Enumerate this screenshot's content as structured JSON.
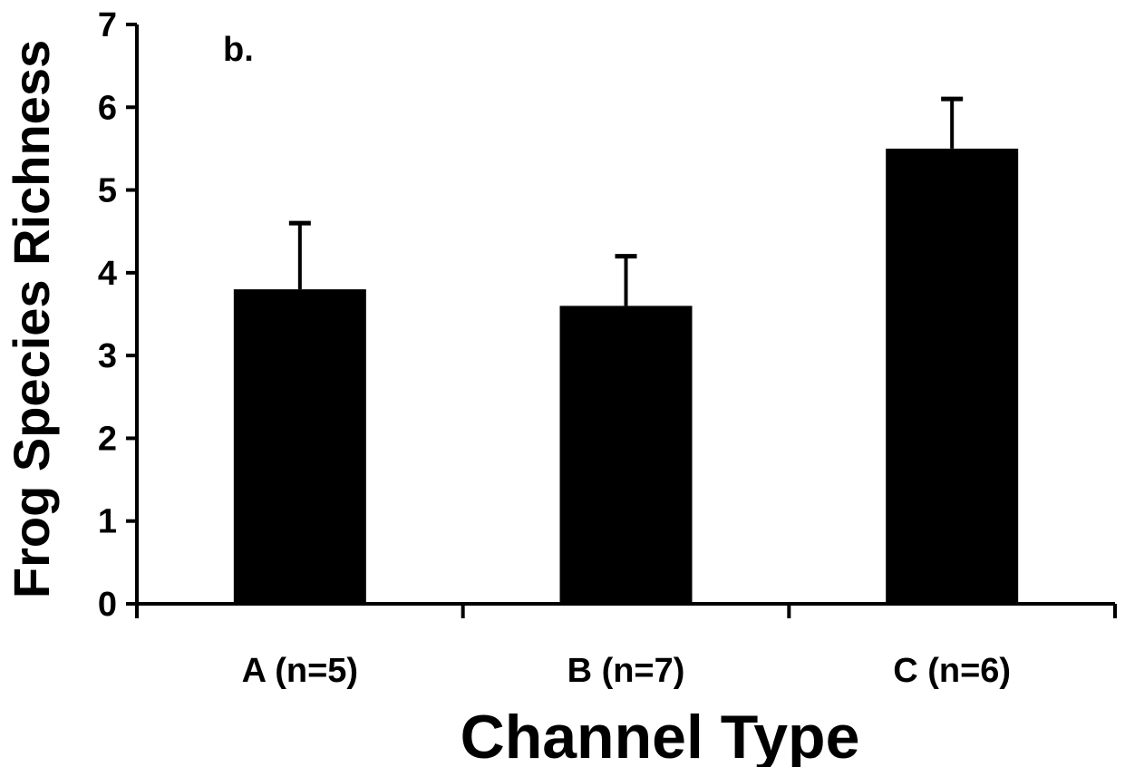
{
  "chart_data": {
    "type": "bar",
    "panel_label": "b.",
    "categories": [
      "A (n=5)",
      "B (n=7)",
      "C (n=6)"
    ],
    "values": [
      3.8,
      3.6,
      5.5
    ],
    "error_upper": [
      0.8,
      0.6,
      0.6
    ],
    "xlabel": "Channel Type",
    "ylabel": "Frog Species Richness",
    "ylim": [
      0,
      7
    ],
    "yticks": [
      "0",
      "1",
      "2",
      "3",
      "4",
      "5",
      "6",
      "7"
    ],
    "grid": false,
    "legend": "none",
    "colors": {
      "bar": "#000000",
      "axis": "#000000"
    }
  }
}
